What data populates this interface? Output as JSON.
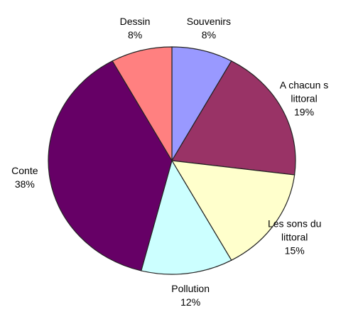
{
  "chart_data": {
    "type": "pie",
    "categories": [
      "Souvenirs",
      "A chacun s\nlittoral",
      "Les sons du\nlittoral",
      "Pollution",
      "Conte",
      "Dessin"
    ],
    "values": [
      8,
      19,
      15,
      12,
      38,
      8
    ],
    "value_labels": [
      "8%",
      "19%",
      "15%",
      "12%",
      "38%",
      "8%"
    ],
    "colors": [
      "#9999ff",
      "#993366",
      "#ffffcc",
      "#ccffff",
      "#660066",
      "#ff8080"
    ]
  }
}
